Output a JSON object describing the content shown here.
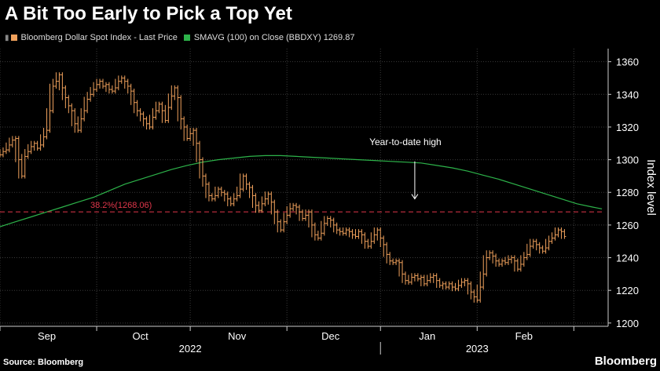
{
  "title": "A Bit Too Early to Pick a Top Yet",
  "legend": {
    "price_label": "Bloomberg Dollar Spot Index - Last Price",
    "sma_label": "SMAVG (100)  on Close (BBDXY) 1269.87"
  },
  "source": "Source: Bloomberg",
  "brand": "Bloomberg",
  "colors": {
    "background": "#000000",
    "price": "#f0a15c",
    "sma": "#2db34a",
    "fib": "#e0364a",
    "grid": "#3a3a3a",
    "text": "#ffffff"
  },
  "chart_data": {
    "type": "line",
    "title": "A Bit Too Early to Pick a Top Yet",
    "ylabel": "Index level",
    "ylim": [
      1198,
      1368
    ],
    "yticks": [
      1200,
      1220,
      1240,
      1260,
      1280,
      1300,
      1320,
      1340,
      1360
    ],
    "x_range": [
      0,
      195
    ],
    "month_ticks": [
      {
        "label": "Sep",
        "x": 15
      },
      {
        "label": "Oct",
        "x": 45
      },
      {
        "label": "Nov",
        "x": 76
      },
      {
        "label": "Dec",
        "x": 106
      },
      {
        "label": "Jan",
        "x": 137
      },
      {
        "label": "Feb",
        "x": 168
      }
    ],
    "month_boundaries": [
      0,
      31,
      61,
      92,
      122,
      153,
      184
    ],
    "year_labels": [
      {
        "label": "2022",
        "x": 61
      },
      {
        "label": "2023",
        "x": 153
      }
    ],
    "year_divider_x": 122,
    "series": [
      {
        "name": "Bloomberg Dollar Spot Index - Last Price",
        "style": "bar",
        "x": [
          0,
          1,
          2,
          3,
          4,
          5,
          6,
          7,
          8,
          9,
          10,
          11,
          12,
          13,
          14,
          15,
          16,
          17,
          18,
          19,
          20,
          21,
          22,
          23,
          24,
          25,
          26,
          27,
          28,
          29,
          30,
          31,
          32,
          33,
          34,
          35,
          36,
          37,
          38,
          39,
          40,
          41,
          42,
          43,
          44,
          45,
          46,
          47,
          48,
          49,
          50,
          51,
          52,
          53,
          54,
          55,
          56,
          57,
          58,
          59,
          60,
          61,
          62,
          63,
          64,
          65,
          66,
          67,
          68,
          69,
          70,
          71,
          72,
          73,
          74,
          75,
          76,
          77,
          78,
          79,
          80,
          81,
          82,
          83,
          84,
          85,
          86,
          87,
          88,
          89,
          90,
          91,
          92,
          93,
          94,
          95,
          96,
          97,
          98,
          99,
          100,
          101,
          102,
          103,
          104,
          105,
          106,
          107,
          108,
          109,
          110,
          111,
          112,
          113,
          114,
          115,
          116,
          117,
          118,
          119,
          120,
          121,
          122,
          123,
          124,
          125,
          126,
          127,
          128,
          129,
          130,
          131,
          132,
          133,
          134,
          135,
          136,
          137,
          138,
          139,
          140,
          141,
          142,
          143,
          144,
          145,
          146,
          147,
          148,
          149,
          150,
          151,
          152,
          153,
          154,
          155,
          156,
          157,
          158,
          159,
          160,
          161,
          162,
          163,
          164,
          165,
          166,
          167,
          168,
          169,
          170,
          171,
          172,
          173,
          174,
          175,
          176,
          177,
          178,
          179,
          180,
          181
        ],
        "values": [
          1303,
          1305,
          1306,
          1309,
          1312,
          1313,
          1300,
          1290,
          1302,
          1305,
          1308,
          1310,
          1307,
          1309,
          1314,
          1318,
          1330,
          1345,
          1348,
          1352,
          1344,
          1338,
          1333,
          1330,
          1322,
          1318,
          1325,
          1330,
          1337,
          1340,
          1343,
          1346,
          1348,
          1345,
          1346,
          1343,
          1342,
          1344,
          1348,
          1350,
          1348,
          1345,
          1342,
          1335,
          1330,
          1328,
          1325,
          1322,
          1320,
          1326,
          1330,
          1334,
          1330,
          1324,
          1332,
          1339,
          1344,
          1338,
          1325,
          1320,
          1313,
          1316,
          1318,
          1310,
          1300,
          1290,
          1285,
          1278,
          1276,
          1278,
          1282,
          1280,
          1279,
          1276,
          1273,
          1276,
          1278,
          1282,
          1290,
          1285,
          1283,
          1278,
          1272,
          1269,
          1273,
          1276,
          1279,
          1274,
          1268,
          1262,
          1257,
          1262,
          1266,
          1270,
          1272,
          1271,
          1268,
          1264,
          1266,
          1268,
          1260,
          1254,
          1252,
          1255,
          1261,
          1264,
          1263,
          1260,
          1257,
          1256,
          1255,
          1257,
          1256,
          1254,
          1253,
          1256,
          1254,
          1250,
          1247,
          1250,
          1254,
          1257,
          1252,
          1248,
          1242,
          1238,
          1237,
          1238,
          1237,
          1230,
          1226,
          1225,
          1228,
          1229,
          1227,
          1228,
          1224,
          1226,
          1228,
          1229,
          1226,
          1223,
          1224,
          1222,
          1224,
          1222,
          1221,
          1223,
          1225,
          1226,
          1224,
          1219,
          1216,
          1214,
          1222,
          1230,
          1240,
          1243,
          1241,
          1238,
          1236,
          1238,
          1237,
          1239,
          1240,
          1238,
          1233,
          1236,
          1240,
          1242,
          1247,
          1250,
          1248,
          1246,
          1244,
          1246,
          1250,
          1252,
          1254,
          1257,
          1256,
          1253
        ]
      },
      {
        "name": "SMAVG (100) on Close (BBDXY)",
        "style": "line",
        "x": [
          0,
          5,
          10,
          15,
          20,
          25,
          30,
          35,
          40,
          45,
          50,
          55,
          60,
          65,
          70,
          75,
          80,
          85,
          90,
          95,
          100,
          105,
          110,
          115,
          120,
          125,
          130,
          135,
          140,
          145,
          150,
          155,
          160,
          165,
          170,
          175,
          180,
          185,
          190,
          193
        ],
        "values": [
          1259,
          1262,
          1265,
          1268,
          1271,
          1274,
          1277,
          1281,
          1285,
          1288,
          1291,
          1294,
          1296.5,
          1298.5,
          1300,
          1301,
          1302,
          1302.5,
          1302.5,
          1302,
          1301.5,
          1301,
          1300.5,
          1300,
          1299.5,
          1299,
          1298.5,
          1298,
          1296.5,
          1295,
          1293,
          1290.5,
          1288,
          1285,
          1282,
          1279,
          1276,
          1273,
          1271,
          1269.87
        ]
      },
      {
        "name": "38.2%(1268.06)",
        "style": "hline",
        "value": 1268.06,
        "label": "38.2%(1268.06)",
        "x_start": 0,
        "x_end": 193
      }
    ],
    "annotations": [
      {
        "text": "Year-to-date high",
        "x": 133,
        "text_value": 1309,
        "arrow_from": 1299,
        "arrow_to": 1276
      }
    ]
  }
}
